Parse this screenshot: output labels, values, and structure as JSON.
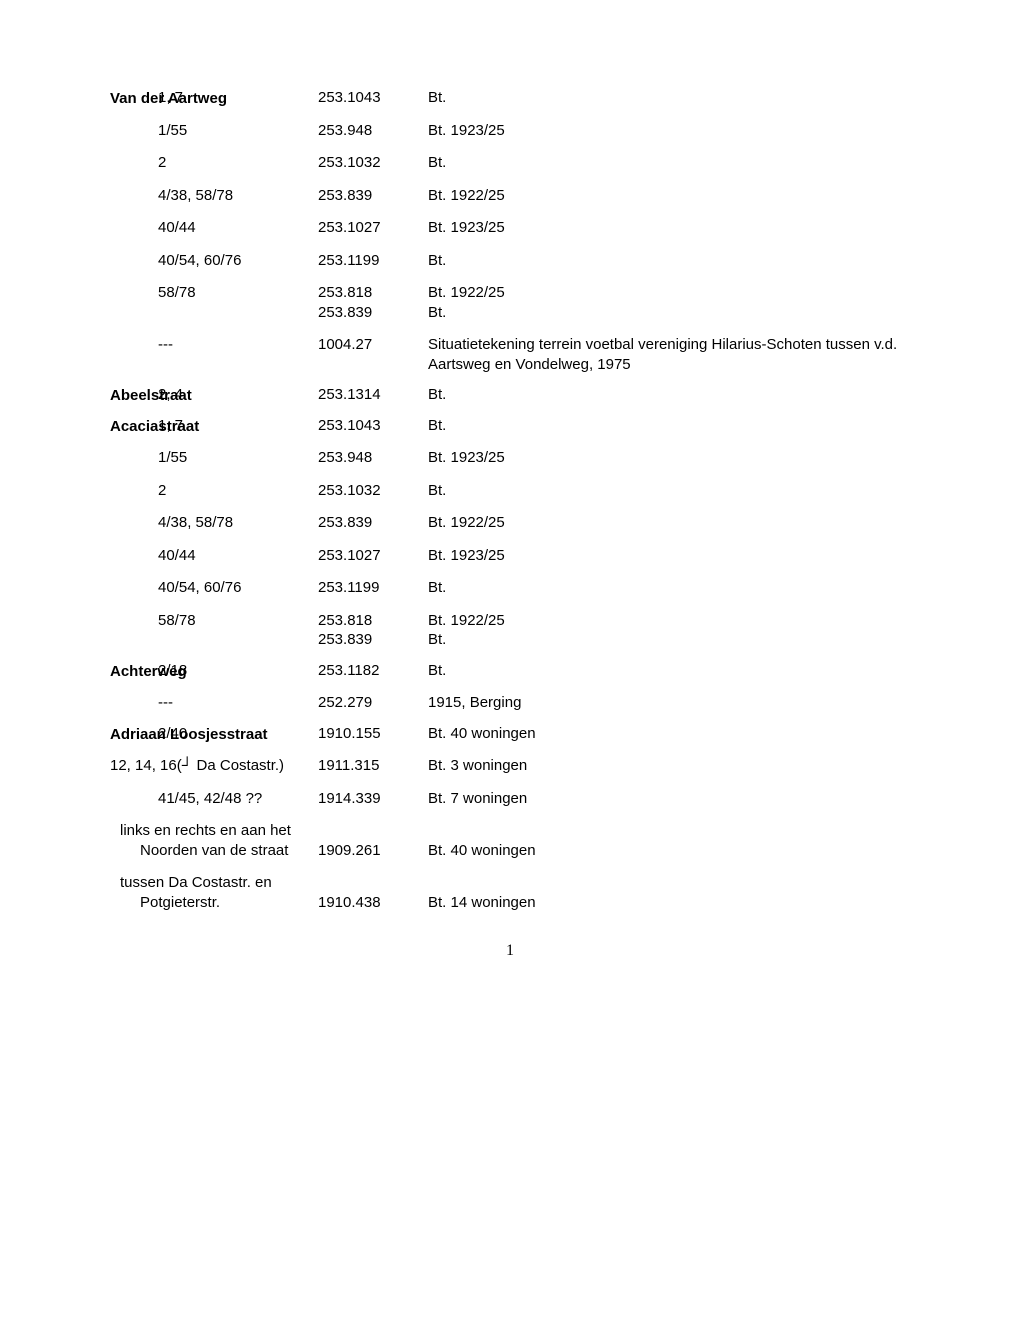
{
  "page_number": "1",
  "sections": [
    {
      "street": "Van der Aartweg",
      "entries": [
        {
          "addr": "1, 7",
          "code": "253.1043",
          "desc": "Bt.",
          "first": true
        },
        {
          "addr": "1/55",
          "code": "253.948",
          "desc": "Bt. 1923/25"
        },
        {
          "addr": "2",
          "code": "253.1032",
          "desc": "Bt."
        },
        {
          "addr": "4/38, 58/78",
          "code": "253.839",
          "desc": "Bt. 1922/25"
        },
        {
          "addr": "40/44",
          "code": "253.1027",
          "desc": "Bt. 1923/25"
        },
        {
          "addr": "40/54, 60/76",
          "code": "253.1199",
          "desc": "Bt."
        },
        {
          "addr": "58/78",
          "code": "253.818",
          "desc": "Bt. 1922/25",
          "extra_code": "253.839",
          "extra_desc": "Bt."
        },
        {
          "addr": "---",
          "code": "1004.27",
          "desc": "Situatietekening terrein voetbal vereniging Hilarius-Schoten tussen v.d. Aartsweg en Vondelweg, 1975"
        }
      ]
    },
    {
      "street": "Abeelstraat",
      "entries": [
        {
          "addr": "2, 4",
          "code": "253.1314",
          "desc": "Bt.",
          "first": true
        }
      ]
    },
    {
      "street": "Acaciastraat",
      "entries": [
        {
          "addr": "1, 7",
          "code": "253.1043",
          "desc": "Bt.",
          "first": true
        },
        {
          "addr": "1/55",
          "code": "253.948",
          "desc": "Bt. 1923/25"
        },
        {
          "addr": "2",
          "code": "253.1032",
          "desc": "Bt."
        },
        {
          "addr": "4/38, 58/78",
          "code": "253.839",
          "desc": "Bt. 1922/25"
        },
        {
          "addr": "40/44",
          "code": "253.1027",
          "desc": "Bt. 1923/25"
        },
        {
          "addr": "40/54, 60/76",
          "code": "253.1199",
          "desc": "Bt."
        },
        {
          "addr": "58/78",
          "code": "253.818",
          "desc": "Bt. 1922/25",
          "extra_code": "253.839",
          "extra_desc": "Bt."
        }
      ]
    },
    {
      "street": "Achterweg",
      "entries": [
        {
          "addr": "2/18",
          "code": "253.1182",
          "desc": "Bt.",
          "first": true
        },
        {
          "addr": "---",
          "code": "252.279",
          "desc": "1915, Berging"
        }
      ]
    },
    {
      "street": "Adriaan Loosjesstraat",
      "entries": [
        {
          "addr": "2/40",
          "code": "1910.155",
          "desc": "Bt. 40 woningen",
          "first": true
        },
        {
          "addr": "12, 14, 16(┘ Da Costastr.)",
          "code": "1911.315",
          "desc": "Bt. 3 woningen",
          "no_indent": true
        },
        {
          "addr": "41/45, 42/48  ??",
          "code": "1914.339",
          "desc": "Bt. 7 woningen"
        },
        {
          "addr_line1": "links en rechts en aan het",
          "addr_line2": "Noorden van de straat",
          "code": "1909.261",
          "desc": "Bt. 40 woningen",
          "two_line": true
        },
        {
          "addr_line1": "tussen Da Costastr. en",
          "addr_line2": "Potgieterstr.",
          "code": "1910.438",
          "desc": "Bt. 14 woningen",
          "two_line": true
        }
      ]
    }
  ]
}
